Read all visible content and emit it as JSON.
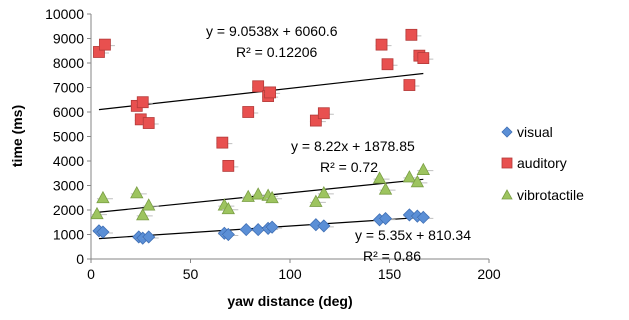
{
  "chart_data": {
    "type": "scatter",
    "xlabel": "yaw distance (deg)",
    "ylabel": "time (ms)",
    "xlim": [
      0,
      200
    ],
    "ylim": [
      0,
      10000
    ],
    "x_ticks": [
      "0",
      "50",
      "100",
      "150",
      "200"
    ],
    "y_ticks": [
      "0",
      "1000",
      "2000",
      "3000",
      "4000",
      "5000",
      "6000",
      "7000",
      "8000",
      "9000",
      "10000"
    ],
    "grid": false,
    "legend_position": "right",
    "series": [
      {
        "name": "visual",
        "marker": "diamond",
        "color": "#5b8fd6",
        "points": [
          [
            4,
            1150
          ],
          [
            6,
            1100
          ],
          [
            24,
            900
          ],
          [
            26,
            850
          ],
          [
            29,
            900
          ],
          [
            67,
            1050
          ],
          [
            69,
            1000
          ],
          [
            78,
            1200
          ],
          [
            84,
            1200
          ],
          [
            89,
            1250
          ],
          [
            91,
            1300
          ],
          [
            113,
            1400
          ],
          [
            117,
            1350
          ],
          [
            145,
            1600
          ],
          [
            148,
            1650
          ],
          [
            160,
            1800
          ],
          [
            164,
            1750
          ],
          [
            167,
            1700
          ]
        ],
        "trendline": {
          "slope": 5.35,
          "intercept": 810.34,
          "equation": "y = 5.35x + 810.34",
          "r2": "R² = 0.86"
        }
      },
      {
        "name": "auditory",
        "marker": "square",
        "color": "#e8504f",
        "points": [
          [
            4,
            8450
          ],
          [
            7,
            8750
          ],
          [
            23,
            6250
          ],
          [
            25,
            5700
          ],
          [
            26,
            6400
          ],
          [
            29,
            5550
          ],
          [
            66,
            4750
          ],
          [
            69,
            3800
          ],
          [
            79,
            6000
          ],
          [
            84,
            7050
          ],
          [
            89,
            6650
          ],
          [
            90,
            6800
          ],
          [
            113,
            5650
          ],
          [
            117,
            5950
          ],
          [
            146,
            8750
          ],
          [
            149,
            7950
          ],
          [
            160,
            7100
          ],
          [
            161,
            9150
          ],
          [
            165,
            8300
          ],
          [
            167,
            8200
          ]
        ],
        "trendline": {
          "slope": 9.0538,
          "intercept": 6060.6,
          "equation": "y = 9.0538x + 6060.6",
          "r2": "R² = 0.12206"
        }
      },
      {
        "name": "vibrotactile",
        "marker": "triangle",
        "color": "#9dc45f",
        "points": [
          [
            3,
            1850
          ],
          [
            6,
            2500
          ],
          [
            23,
            2700
          ],
          [
            26,
            1800
          ],
          [
            29,
            2200
          ],
          [
            67,
            2200
          ],
          [
            69,
            2050
          ],
          [
            79,
            2550
          ],
          [
            84,
            2650
          ],
          [
            89,
            2600
          ],
          [
            91,
            2500
          ],
          [
            113,
            2350
          ],
          [
            117,
            2700
          ],
          [
            145,
            3300
          ],
          [
            148,
            2850
          ],
          [
            160,
            3350
          ],
          [
            164,
            3150
          ],
          [
            167,
            3650
          ]
        ],
        "trendline": {
          "slope": 8.22,
          "intercept": 1878.85,
          "equation": "y = 8.22x + 1878.85",
          "r2": "R² = 0.72"
        }
      }
    ]
  }
}
